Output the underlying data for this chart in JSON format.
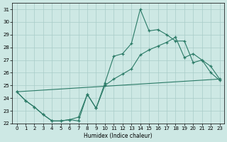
{
  "xlabel": "Humidex (Indice chaleur)",
  "xlim": [
    -0.5,
    23.5
  ],
  "ylim": [
    22.0,
    31.5
  ],
  "yticks": [
    22,
    23,
    24,
    25,
    26,
    27,
    28,
    29,
    30,
    31
  ],
  "xticks": [
    0,
    1,
    2,
    3,
    4,
    5,
    6,
    7,
    8,
    9,
    10,
    11,
    12,
    13,
    14,
    15,
    16,
    17,
    18,
    19,
    20,
    21,
    22,
    23
  ],
  "bg": "#cde8e4",
  "grid_color": "#a8ccc8",
  "lc": "#2a7a66",
  "straight_line": [
    [
      0,
      23
    ],
    [
      24.5,
      25.5
    ]
  ],
  "mid_line_x": [
    0,
    1,
    2,
    3,
    4,
    5,
    6,
    7,
    8,
    9,
    10,
    11,
    12,
    13,
    14,
    15,
    16,
    17,
    18,
    19,
    20,
    21,
    22,
    23
  ],
  "mid_line_y": [
    24.5,
    23.8,
    23.3,
    22.7,
    22.2,
    22.2,
    22.3,
    22.5,
    24.3,
    23.2,
    25.0,
    25.5,
    25.9,
    26.3,
    27.4,
    27.8,
    28.1,
    28.4,
    28.8,
    27.2,
    27.5,
    27.0,
    26.5,
    25.5
  ],
  "top_line_x": [
    0,
    1,
    2,
    3,
    4,
    5,
    6,
    7,
    8,
    9,
    10,
    11,
    12,
    13,
    14,
    15,
    16,
    17,
    18,
    19,
    20,
    21,
    22,
    23
  ],
  "top_line_y": [
    24.5,
    23.8,
    23.3,
    22.7,
    22.2,
    22.2,
    22.3,
    22.2,
    24.3,
    23.2,
    25.2,
    27.3,
    27.5,
    28.3,
    31.0,
    29.3,
    29.4,
    29.0,
    28.5,
    28.5,
    26.8,
    27.0,
    26.0,
    25.4
  ]
}
